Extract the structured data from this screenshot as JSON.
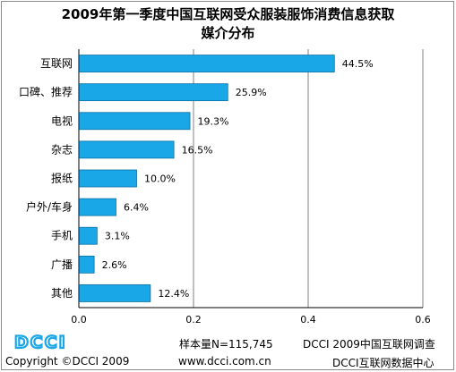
{
  "title_line1": "2009年第一季度中国互联网受众服装服饰消费信息获取",
  "title_line2": "媒介分布",
  "colors": {
    "bar": "#1aa7e8",
    "bar_edge": "#0a6fa3",
    "grid": "#808080",
    "logo": "#1aa7e8"
  },
  "chart_data": {
    "type": "bar",
    "orientation": "horizontal",
    "categories": [
      "互联网",
      "口碑、推荐",
      "电视",
      "杂志",
      "报纸",
      "户外/车身",
      "手机",
      "广播",
      "其他"
    ],
    "values": [
      0.445,
      0.259,
      0.193,
      0.165,
      0.1,
      0.064,
      0.031,
      0.026,
      0.124
    ],
    "value_labels": [
      "44.5%",
      "25.9%",
      "19.3%",
      "16.5%",
      "10.0%",
      "6.4%",
      "3.1%",
      "2.6%",
      "12.4%"
    ],
    "xlim": [
      0,
      0.6
    ],
    "xticks": [
      0.0,
      0.2,
      0.4,
      0.6
    ],
    "xtick_labels": [
      "0.0",
      "0.2",
      "0.4",
      "0.6"
    ],
    "grid": "vertical"
  },
  "footer": {
    "logo_text": "DCCI",
    "sample": "样本量N=115,745",
    "survey": "DCCI 2009中国互联网调查",
    "copyright": "Copyright ©DCCI 2009",
    "url": "www.dcci.com.cn",
    "center": "DCCI互联网数据中心"
  }
}
